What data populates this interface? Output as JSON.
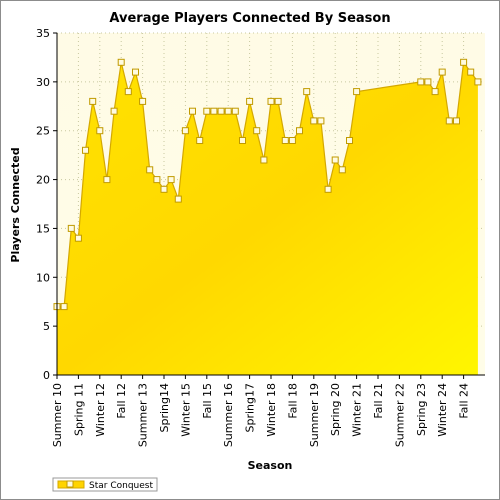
{
  "chart_data": {
    "type": "area",
    "title": "Average Players Connected By Season",
    "xlabel": "Season",
    "ylabel": "Players Connected",
    "ylim": [
      0,
      35
    ],
    "yticks": [
      0,
      5,
      10,
      15,
      20,
      25,
      30,
      35
    ],
    "x_range": [
      0,
      100
    ],
    "x_ticks": [
      {
        "label": "Summer 10",
        "x": 0
      },
      {
        "label": "Spring 11",
        "x": 5
      },
      {
        "label": "Winter 12",
        "x": 10
      },
      {
        "label": "Fall 12",
        "x": 15
      },
      {
        "label": "Summer 13",
        "x": 20
      },
      {
        "label": "Spring14",
        "x": 25
      },
      {
        "label": "Winter 15",
        "x": 30
      },
      {
        "label": "Fall 15",
        "x": 35
      },
      {
        "label": "Summer 16",
        "x": 40
      },
      {
        "label": "Spring17",
        "x": 45
      },
      {
        "label": "Winter 18",
        "x": 50
      },
      {
        "label": "Fall 18",
        "x": 55
      },
      {
        "label": "Summer 19",
        "x": 60
      },
      {
        "label": "Spring 20",
        "x": 65
      },
      {
        "label": "Winter 21",
        "x": 70
      },
      {
        "label": "Fall 21",
        "x": 75
      },
      {
        "label": "Summer 22",
        "x": 80
      },
      {
        "label": "Spring 23",
        "x": 85
      },
      {
        "label": "Winter 24",
        "x": 90
      },
      {
        "label": "Fall 24",
        "x": 95
      }
    ],
    "grid": true,
    "legend_position": "bottom-left",
    "colors": {
      "fill_light": "#fffbd6",
      "fill_dark": "#ffd400",
      "line": "#d4a800",
      "marker_fill": "#fffbe0",
      "marker_stroke": "#c09a00",
      "plot_bg": "#fffceb",
      "grid": "#c8c8a0"
    },
    "series": [
      {
        "name": "Star Conquest",
        "points": [
          [
            0,
            7
          ],
          [
            1.67,
            7
          ],
          [
            3.33,
            15
          ],
          [
            5,
            14
          ],
          [
            6.67,
            23
          ],
          [
            8.33,
            28
          ],
          [
            10,
            25
          ],
          [
            11.67,
            20
          ],
          [
            13.33,
            27
          ],
          [
            15,
            32
          ],
          [
            16.67,
            29
          ],
          [
            18.33,
            31
          ],
          [
            20,
            28
          ],
          [
            21.67,
            21
          ],
          [
            23.33,
            20
          ],
          [
            25,
            19
          ],
          [
            26.67,
            20
          ],
          [
            28.33,
            18
          ],
          [
            30,
            25
          ],
          [
            31.67,
            27
          ],
          [
            33.33,
            24
          ],
          [
            35,
            27
          ],
          [
            36.67,
            27
          ],
          [
            38.33,
            27
          ],
          [
            40,
            27
          ],
          [
            41.67,
            27
          ],
          [
            43.33,
            24
          ],
          [
            45,
            28
          ],
          [
            46.67,
            25
          ],
          [
            48.33,
            22
          ],
          [
            50,
            28
          ],
          [
            51.67,
            28
          ],
          [
            53.33,
            24
          ],
          [
            55,
            24
          ],
          [
            56.67,
            25
          ],
          [
            58.33,
            29
          ],
          [
            60,
            26
          ],
          [
            61.67,
            26
          ],
          [
            63.33,
            19
          ],
          [
            65,
            22
          ],
          [
            66.67,
            21
          ],
          [
            68.33,
            24
          ],
          [
            70,
            29
          ],
          [
            85,
            30
          ],
          [
            86.67,
            30
          ],
          [
            88.33,
            29
          ],
          [
            90,
            31
          ],
          [
            91.67,
            26
          ],
          [
            93.33,
            26
          ],
          [
            95,
            32
          ],
          [
            96.67,
            31
          ],
          [
            98.33,
            30
          ]
        ]
      }
    ]
  }
}
